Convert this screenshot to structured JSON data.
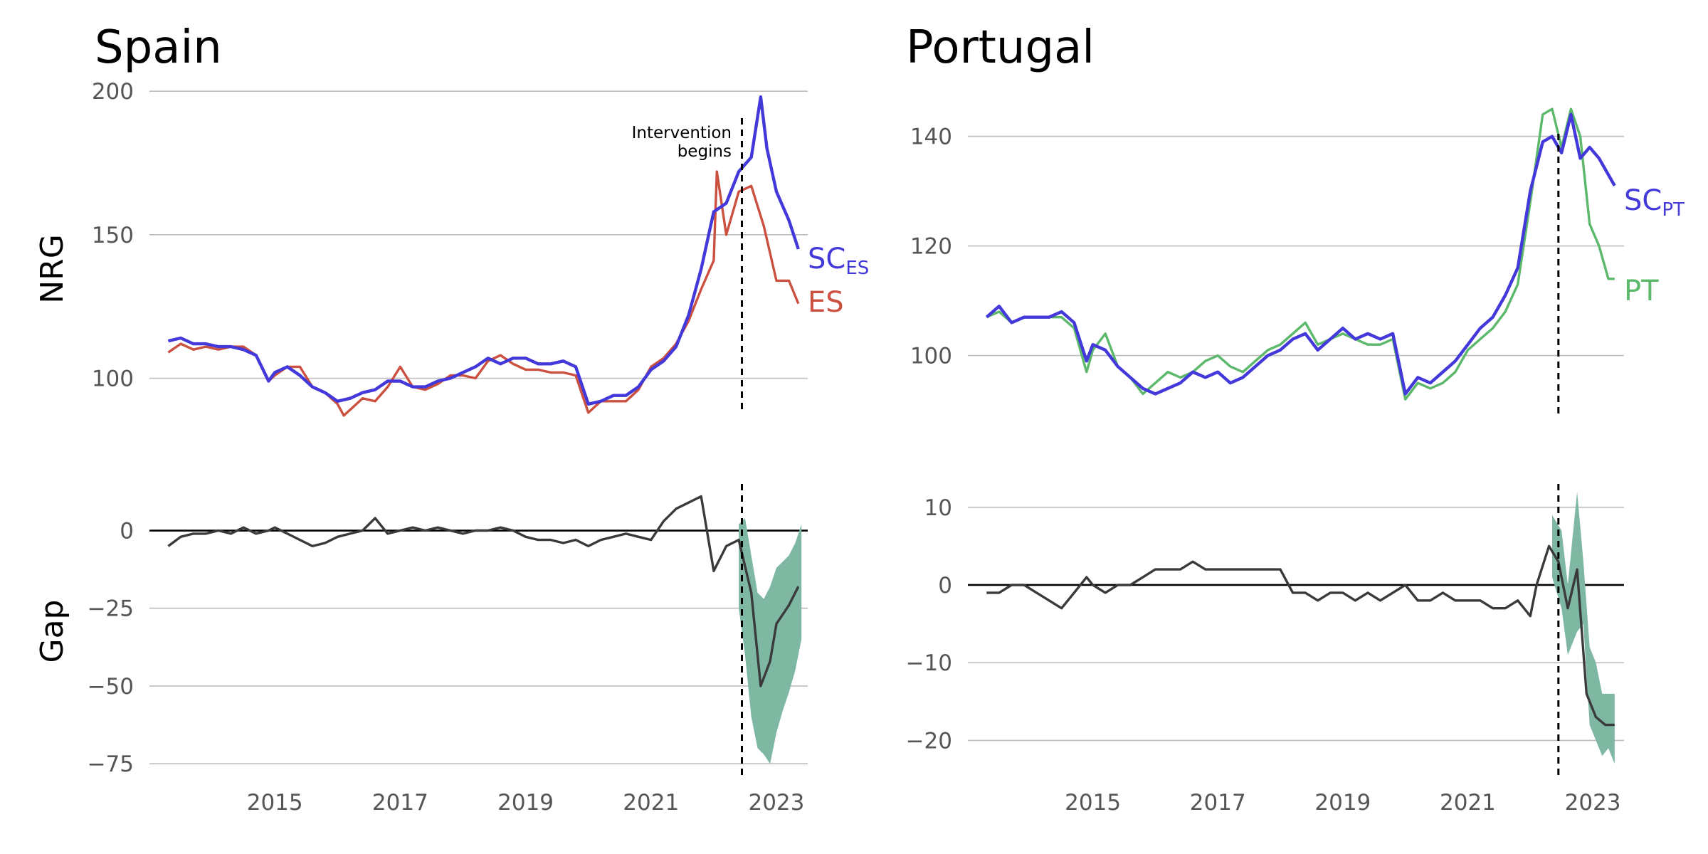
{
  "chart_data": [
    {
      "type": "line",
      "title": "Spain",
      "subplots": [
        {
          "ylabel": "NRG",
          "ylim": [
            85,
            205
          ],
          "yticks": [
            "100",
            "150",
            "200"
          ],
          "ytick_values": [
            100,
            150,
            200
          ],
          "grid": true,
          "annotation": {
            "lines": [
              "Intervention",
              "begins"
            ],
            "x": 2022.45
          },
          "series": [
            {
              "name": "SC",
              "subscript": "ES",
              "color": "#4338d9",
              "x": [
                2013.3,
                2013.5,
                2013.7,
                2013.9,
                2014.1,
                2014.3,
                2014.5,
                2014.7,
                2014.9,
                2015.0,
                2015.2,
                2015.4,
                2015.6,
                2015.8,
                2016.0,
                2016.2,
                2016.4,
                2016.6,
                2016.8,
                2017.0,
                2017.2,
                2017.4,
                2017.6,
                2017.8,
                2018.0,
                2018.2,
                2018.4,
                2018.6,
                2018.8,
                2019.0,
                2019.2,
                2019.4,
                2019.6,
                2019.8,
                2020.0,
                2020.2,
                2020.4,
                2020.6,
                2020.8,
                2021.0,
                2021.2,
                2021.4,
                2021.6,
                2021.8,
                2022.0,
                2022.2,
                2022.4,
                2022.6,
                2022.75,
                2022.85,
                2023.0,
                2023.2,
                2023.35
              ],
              "y": [
                113,
                114,
                112,
                112,
                111,
                111,
                110,
                108,
                99,
                102,
                104,
                101,
                97,
                95,
                92,
                93,
                95,
                96,
                99,
                99,
                97,
                97,
                99,
                100,
                102,
                104,
                107,
                105,
                107,
                107,
                105,
                105,
                106,
                104,
                91,
                92,
                94,
                94,
                97,
                103,
                106,
                111,
                122,
                138,
                158,
                161,
                172,
                177,
                198,
                180,
                165,
                155,
                145
              ]
            },
            {
              "name": "ES",
              "color": "#cc5040",
              "x": [
                2013.3,
                2013.5,
                2013.7,
                2013.9,
                2014.1,
                2014.3,
                2014.5,
                2014.7,
                2014.9,
                2015.0,
                2015.2,
                2015.4,
                2015.6,
                2015.8,
                2016.0,
                2016.1,
                2016.2,
                2016.4,
                2016.6,
                2016.8,
                2017.0,
                2017.2,
                2017.4,
                2017.6,
                2017.8,
                2018.0,
                2018.2,
                2018.4,
                2018.6,
                2018.8,
                2019.0,
                2019.2,
                2019.4,
                2019.6,
                2019.8,
                2020.0,
                2020.2,
                2020.4,
                2020.6,
                2020.8,
                2021.0,
                2021.2,
                2021.4,
                2021.6,
                2021.8,
                2022.0,
                2022.05,
                2022.2,
                2022.4,
                2022.6,
                2022.8,
                2023.0,
                2023.2,
                2023.35
              ],
              "y": [
                109,
                112,
                110,
                111,
                110,
                111,
                111,
                108,
                99,
                101,
                104,
                104,
                97,
                95,
                91,
                87,
                89,
                93,
                92,
                97,
                104,
                97,
                96,
                98,
                101,
                101,
                100,
                106,
                108,
                105,
                103,
                103,
                102,
                102,
                101,
                88,
                92,
                92,
                92,
                96,
                104,
                107,
                112,
                120,
                131,
                141,
                172,
                150,
                165,
                167,
                153,
                134,
                134,
                126
              ]
            }
          ]
        },
        {
          "ylabel": "Gap",
          "ylim": [
            -80,
            15
          ],
          "yticks": [
            "0",
            "-25",
            "-50",
            "-75"
          ],
          "ytick_values": [
            0,
            -25,
            -50,
            -75
          ],
          "grid": true,
          "series": [
            {
              "name": "",
              "color": "#3a3a3a",
              "x": [
                2013.3,
                2013.5,
                2013.7,
                2013.9,
                2014.1,
                2014.3,
                2014.5,
                2014.7,
                2014.9,
                2015.0,
                2015.2,
                2015.4,
                2015.6,
                2015.8,
                2016.0,
                2016.2,
                2016.4,
                2016.6,
                2016.8,
                2017.0,
                2017.2,
                2017.4,
                2017.6,
                2017.8,
                2018.0,
                2018.2,
                2018.4,
                2018.6,
                2018.8,
                2019.0,
                2019.2,
                2019.4,
                2019.6,
                2019.8,
                2020.0,
                2020.2,
                2020.4,
                2020.6,
                2020.8,
                2021.0,
                2021.2,
                2021.4,
                2021.6,
                2021.8,
                2022.0,
                2022.2,
                2022.4,
                2022.6,
                2022.75,
                2022.9,
                2023.0,
                2023.2,
                2023.35
              ],
              "y": [
                -5,
                -2,
                -1,
                -1,
                0,
                -1,
                1,
                -1,
                0,
                1,
                -1,
                -3,
                -5,
                -4,
                -2,
                -1,
                0,
                4,
                -1,
                0,
                1,
                0,
                1,
                0,
                -1,
                0,
                0,
                1,
                0,
                -2,
                -3,
                -3,
                -4,
                -3,
                -5,
                -3,
                -2,
                -1,
                -2,
                -3,
                3,
                7,
                9,
                11,
                -13,
                -5,
                -3,
                -20,
                -50,
                -42,
                -30,
                -24,
                -18
              ]
            }
          ],
          "band": {
            "color": "#7eb7a2",
            "x": [
              2022.4,
              2022.5,
              2022.6,
              2022.7,
              2022.8,
              2022.9,
              2023.0,
              2023.1,
              2023.2,
              2023.3,
              2023.4
            ],
            "upper": [
              2,
              4,
              -8,
              -20,
              -22,
              -18,
              -12,
              -10,
              -8,
              -4,
              2
            ],
            "lower": [
              -25,
              -40,
              -60,
              -70,
              -72,
              -75,
              -65,
              -58,
              -52,
              -45,
              -35
            ]
          }
        }
      ],
      "xticks": [
        "2015",
        "2017",
        "2019",
        "2021",
        "2023"
      ],
      "xtick_values": [
        2015,
        2017,
        2019,
        2021,
        2023
      ],
      "xlim": [
        2013.0,
        2023.5
      ]
    },
    {
      "type": "line",
      "title": "Portugal",
      "subplots": [
        {
          "ylabel": "",
          "ylim": [
            88,
            148
          ],
          "yticks": [
            "100",
            "120",
            "140"
          ],
          "ytick_values": [
            100,
            120,
            140
          ],
          "grid": true,
          "series": [
            {
              "name": "SC",
              "subscript": "PT",
              "color": "#4338d9",
              "x": [
                2013.3,
                2013.5,
                2013.7,
                2013.9,
                2014.1,
                2014.3,
                2014.5,
                2014.7,
                2014.9,
                2015.0,
                2015.2,
                2015.4,
                2015.6,
                2015.8,
                2016.0,
                2016.2,
                2016.4,
                2016.6,
                2016.8,
                2017.0,
                2017.2,
                2017.4,
                2017.6,
                2017.8,
                2018.0,
                2018.2,
                2018.4,
                2018.6,
                2018.8,
                2019.0,
                2019.2,
                2019.4,
                2019.6,
                2019.8,
                2020.0,
                2020.2,
                2020.4,
                2020.6,
                2020.8,
                2021.0,
                2021.2,
                2021.4,
                2021.6,
                2021.8,
                2022.0,
                2022.2,
                2022.35,
                2022.5,
                2022.65,
                2022.8,
                2022.95,
                2023.1,
                2023.25,
                2023.35
              ],
              "y": [
                107,
                109,
                106,
                107,
                107,
                107,
                108,
                106,
                99,
                102,
                101,
                98,
                96,
                94,
                93,
                94,
                95,
                97,
                96,
                97,
                95,
                96,
                98,
                100,
                101,
                103,
                104,
                101,
                103,
                105,
                103,
                104,
                103,
                104,
                93,
                96,
                95,
                97,
                99,
                102,
                105,
                107,
                111,
                116,
                130,
                139,
                140,
                137,
                144,
                136,
                138,
                136,
                133,
                131
              ]
            },
            {
              "name": "PT",
              "color": "#5cb86a",
              "x": [
                2013.3,
                2013.5,
                2013.7,
                2013.9,
                2014.1,
                2014.3,
                2014.5,
                2014.7,
                2014.9,
                2015.0,
                2015.2,
                2015.4,
                2015.6,
                2015.8,
                2016.0,
                2016.2,
                2016.4,
                2016.6,
                2016.8,
                2017.0,
                2017.2,
                2017.4,
                2017.6,
                2017.8,
                2018.0,
                2018.2,
                2018.4,
                2018.6,
                2018.8,
                2019.0,
                2019.2,
                2019.4,
                2019.6,
                2019.8,
                2020.0,
                2020.2,
                2020.4,
                2020.6,
                2020.8,
                2021.0,
                2021.2,
                2021.4,
                2021.6,
                2021.8,
                2022.0,
                2022.2,
                2022.35,
                2022.5,
                2022.65,
                2022.8,
                2022.95,
                2023.1,
                2023.25,
                2023.35
              ],
              "y": [
                107,
                108,
                106,
                107,
                107,
                107,
                107,
                105,
                97,
                101,
                104,
                98,
                96,
                93,
                95,
                97,
                96,
                97,
                99,
                100,
                98,
                97,
                99,
                101,
                102,
                104,
                106,
                102,
                103,
                104,
                103,
                102,
                102,
                103,
                92,
                95,
                94,
                95,
                97,
                101,
                103,
                105,
                108,
                113,
                128,
                144,
                145,
                138,
                145,
                140,
                124,
                120,
                114,
                114
              ]
            }
          ]
        },
        {
          "ylabel": "",
          "ylim": [
            -25,
            13
          ],
          "yticks": [
            "10",
            "0",
            "-10",
            "-20"
          ],
          "ytick_values": [
            10,
            0,
            -10,
            -20
          ],
          "grid": true,
          "series": [
            {
              "name": "",
              "color": "#3a3a3a",
              "x": [
                2013.3,
                2013.5,
                2013.7,
                2013.9,
                2014.1,
                2014.3,
                2014.5,
                2014.7,
                2014.9,
                2015.0,
                2015.2,
                2015.4,
                2015.6,
                2015.8,
                2016.0,
                2016.2,
                2016.4,
                2016.6,
                2016.8,
                2017.0,
                2017.2,
                2017.4,
                2017.6,
                2017.8,
                2018.0,
                2018.2,
                2018.4,
                2018.6,
                2018.8,
                2019.0,
                2019.2,
                2019.4,
                2019.6,
                2019.8,
                2020.0,
                2020.2,
                2020.4,
                2020.6,
                2020.8,
                2021.0,
                2021.2,
                2021.4,
                2021.6,
                2021.8,
                2022.0,
                2022.1,
                2022.3,
                2022.45,
                2022.6,
                2022.75,
                2022.9,
                2023.05,
                2023.2,
                2023.35
              ],
              "y": [
                -1,
                -1,
                0,
                0,
                -1,
                -2,
                -3,
                -1,
                1,
                0,
                -1,
                0,
                0,
                1,
                2,
                2,
                2,
                3,
                2,
                2,
                2,
                2,
                2,
                2,
                2,
                -1,
                -1,
                -2,
                -1,
                -1,
                -2,
                -1,
                -2,
                -1,
                0,
                -2,
                -2,
                -1,
                -2,
                -2,
                -2,
                -3,
                -3,
                -2,
                -4,
                0,
                5,
                3,
                -3,
                2,
                -14,
                -17,
                -18,
                -18
              ]
            }
          ],
          "band": {
            "color": "#7eb7a2",
            "x": [
              2022.35,
              2022.5,
              2022.6,
              2022.75,
              2022.85,
              2022.95,
              2023.05,
              2023.15,
              2023.25,
              2023.35
            ],
            "upper": [
              9,
              7,
              0,
              12,
              3,
              -8,
              -10,
              -14,
              -14,
              -14
            ],
            "lower": [
              1,
              -3,
              -9,
              -6,
              -5,
              -18,
              -20,
              -22,
              -21,
              -23
            ]
          }
        }
      ],
      "xticks": [
        "2015",
        "2017",
        "2019",
        "2021",
        "2023"
      ],
      "xtick_values": [
        2015,
        2017,
        2019,
        2021,
        2023
      ],
      "xlim": [
        2013.0,
        2023.5
      ]
    }
  ]
}
